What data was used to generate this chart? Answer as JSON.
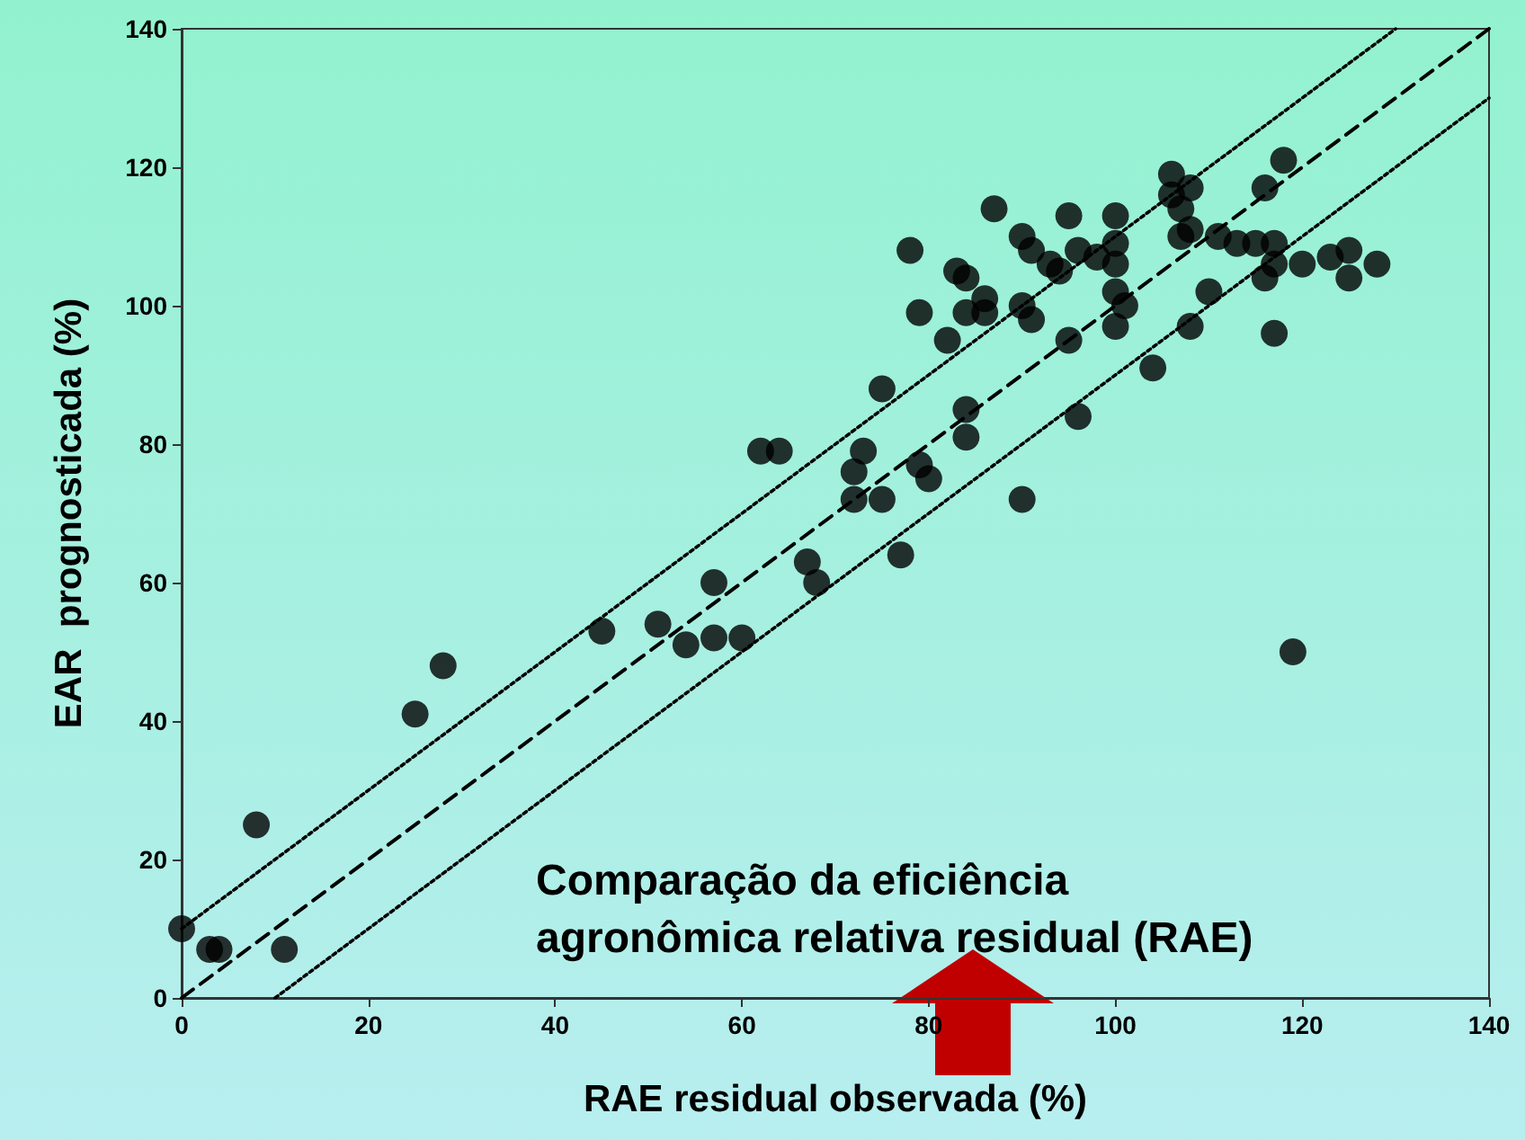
{
  "chart_data": {
    "type": "scatter",
    "xlabel": "RAE residual observada (%)",
    "ylabel": "EAR  prognosticada (%)",
    "annotations": [
      "Comparação da eficiência agronômica relativa residual (RAE)"
    ],
    "xlim": [
      0,
      140
    ],
    "xticks": [
      0,
      20,
      40,
      60,
      80,
      100,
      120,
      140
    ],
    "ylim": [
      0,
      140
    ],
    "yticks": [
      0,
      20,
      40,
      60,
      80,
      100,
      120,
      140
    ],
    "grid": false,
    "series": [
      {
        "marker": "circle",
        "color": "#000000",
        "x": [
          0,
          3,
          4,
          8,
          11,
          25,
          28,
          45,
          51,
          54,
          57,
          57,
          60,
          62,
          64,
          67,
          68,
          72,
          73,
          72,
          75,
          75,
          77,
          79,
          80,
          78,
          79,
          82,
          83,
          84,
          84,
          84,
          84,
          86,
          86,
          87,
          90,
          90,
          91,
          90,
          91,
          93,
          94,
          95,
          95,
          96,
          96,
          98,
          100,
          100,
          100,
          100,
          100,
          101,
          104,
          106,
          106,
          107,
          107,
          108,
          108,
          108,
          110,
          111,
          113,
          115,
          116,
          116,
          117,
          117,
          117,
          118,
          119,
          120,
          123,
          125,
          125,
          128
        ],
        "values": [
          10,
          7,
          7,
          25,
          7,
          41,
          48,
          53,
          54,
          51,
          60,
          52,
          52,
          79,
          79,
          63,
          60,
          76,
          79,
          72,
          72,
          88,
          64,
          77,
          75,
          108,
          99,
          95,
          105,
          104,
          99,
          85,
          81,
          101,
          99,
          114,
          72,
          110,
          108,
          100,
          98,
          106,
          105,
          113,
          95,
          108,
          84,
          107,
          109,
          113,
          106,
          102,
          97,
          100,
          91,
          119,
          116,
          114,
          110,
          117,
          97,
          111,
          102,
          110,
          109,
          109,
          117,
          104,
          109,
          106,
          96,
          121,
          50,
          106,
          107,
          108,
          104,
          106
        ]
      },
      {
        "type": "line",
        "line_style": "dashed",
        "color": "#000000",
        "x": [
          0,
          140
        ],
        "values": [
          0,
          140
        ]
      },
      {
        "type": "line",
        "line_style": "dotted",
        "color": "#000000",
        "x": [
          0,
          130
        ],
        "values": [
          10,
          140
        ]
      },
      {
        "type": "line",
        "line_style": "dotted",
        "color": "#000000",
        "x": [
          10,
          140
        ],
        "values": [
          0,
          130
        ]
      }
    ]
  }
}
